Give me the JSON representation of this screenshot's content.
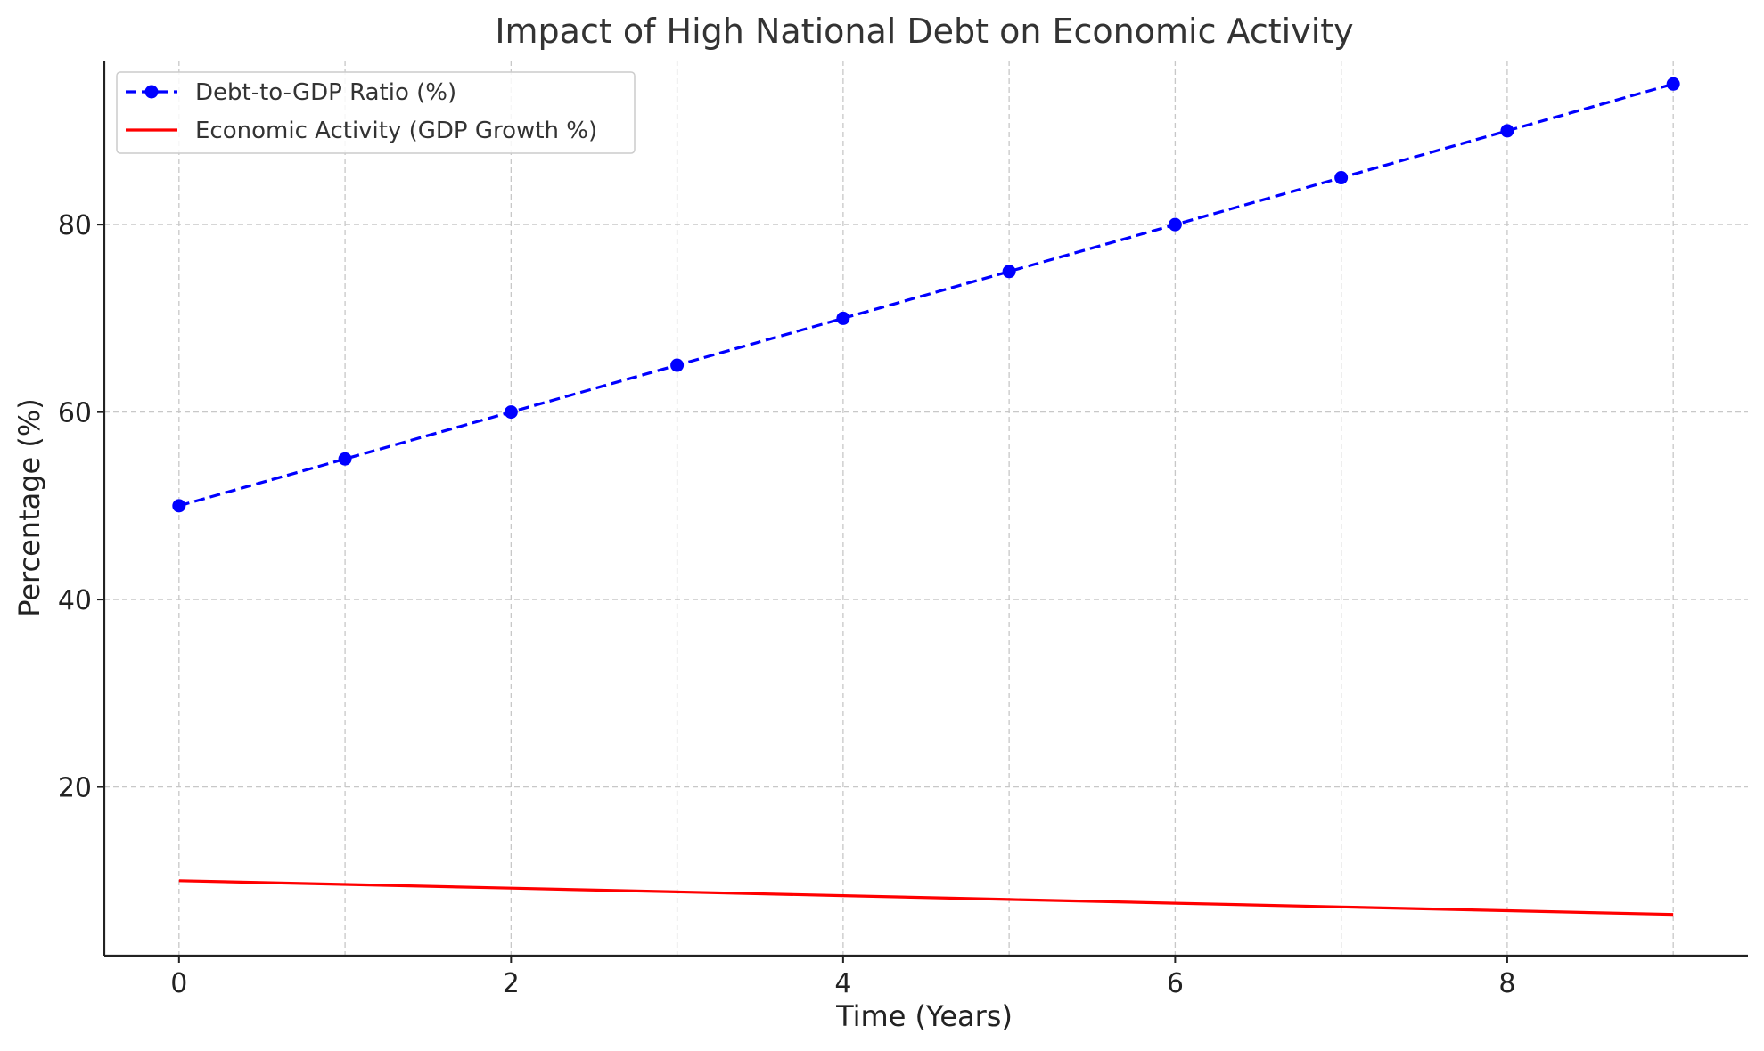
{
  "chart_data": {
    "type": "line",
    "title": "Impact of High National Debt on Economic Activity",
    "xlabel": "Time (Years)",
    "ylabel": "Percentage (%)",
    "x": [
      0,
      1,
      2,
      3,
      4,
      5,
      6,
      7,
      8,
      9
    ],
    "xticks": [
      "0",
      "2",
      "4",
      "6",
      "8"
    ],
    "yticks": [
      "20",
      "40",
      "60",
      "80"
    ],
    "xlim": [
      -0.45,
      9.45
    ],
    "ylim": [
      2,
      97.5
    ],
    "grid": true,
    "legend_position": "top-left",
    "series": [
      {
        "name": "Debt-to-GDP Ratio (%)",
        "color": "#0000ff",
        "style": "dashed",
        "marker": "circle",
        "values": [
          50,
          55,
          60,
          65,
          70,
          75,
          80,
          85,
          90,
          95
        ]
      },
      {
        "name": "Economic Activity (GDP Growth %)",
        "color": "#ff0000",
        "style": "solid",
        "marker": "none",
        "values": [
          10,
          9.6,
          9.2,
          8.8,
          8.4,
          8.0,
          7.6,
          7.2,
          6.8,
          6.4
        ]
      }
    ]
  }
}
